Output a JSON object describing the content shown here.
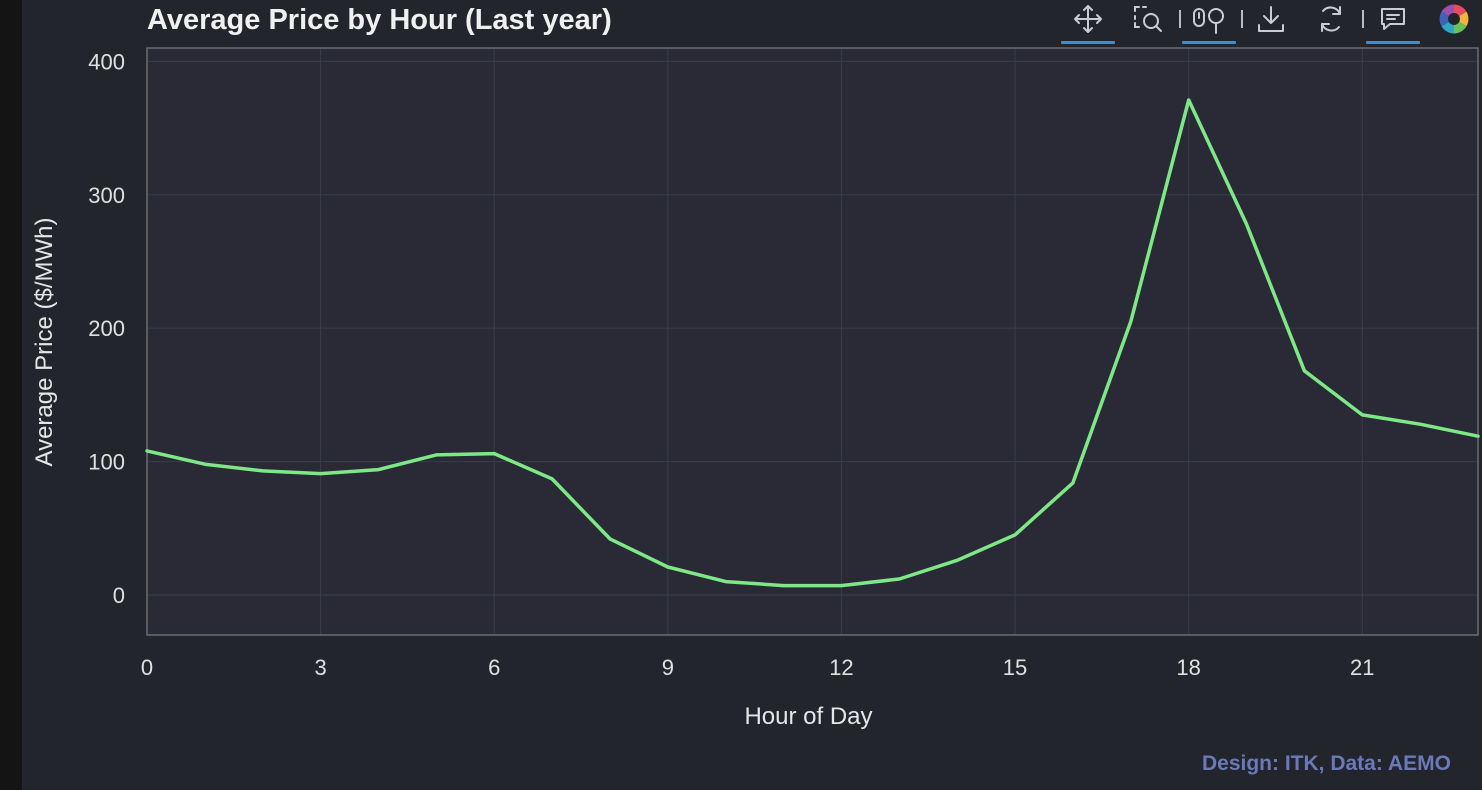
{
  "chart_data": {
    "type": "line",
    "title": "Average Price by Hour (Last year)",
    "xlabel": "Hour of Day",
    "ylabel": "Average Price ($/MWh)",
    "xlim": [
      0,
      23
    ],
    "ylim": [
      -30,
      410
    ],
    "xticks": [
      0,
      3,
      6,
      9,
      12,
      15,
      18,
      21
    ],
    "xtick_labels": [
      "0",
      "3",
      "6",
      "9",
      "12",
      "15",
      "18",
      "21"
    ],
    "yticks": [
      0,
      100,
      200,
      300,
      400
    ],
    "ytick_labels": [
      "0",
      "100",
      "200",
      "300",
      "400"
    ],
    "grid": true,
    "series": [
      {
        "color": "#7ee886",
        "x": [
          0,
          1,
          2,
          3,
          4,
          5,
          6,
          7,
          8,
          9,
          10,
          11,
          12,
          13,
          14,
          15,
          16,
          17,
          18,
          19,
          20,
          21,
          22,
          23
        ],
        "values": [
          108,
          98,
          93,
          91,
          94,
          105,
          106,
          87,
          42,
          21,
          10,
          7,
          7,
          12,
          26,
          45,
          84,
          205,
          371,
          278,
          168,
          135,
          128,
          119
        ]
      }
    ]
  },
  "toolbar": {
    "icons": [
      "pan-icon",
      "box-zoom-icon",
      "wheel-zoom-icon",
      "save-icon",
      "reset-icon",
      "hover-icon",
      "bokeh-logo-icon"
    ]
  },
  "credit": "Design: ITK, Data: AEMO"
}
